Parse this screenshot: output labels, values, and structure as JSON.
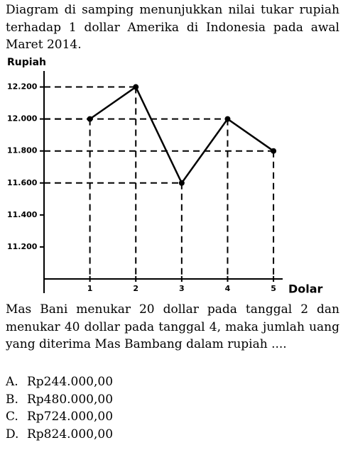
{
  "question": {
    "intro": "Diagram di samping menunjukkan nilai tukar rupiah terhadap 1 dollar Amerika di Indonesia pada awal Maret 2014.",
    "body": "Mas Bani menukar 20 dollar pada tanggal 2 dan menukar 40 dollar pada tanggal 4, maka jumlah uang yang diterima Mas Bambang dalam rupiah ....",
    "options": [
      {
        "letter": "A.",
        "text": "Rp244.000,00"
      },
      {
        "letter": "B.",
        "text": "Rp480.000,00"
      },
      {
        "letter": "C.",
        "text": "Rp724.000,00"
      },
      {
        "letter": "D.",
        "text": "Rp824.000,00"
      }
    ]
  },
  "chart_data": {
    "type": "line",
    "y_label": "Rupiah",
    "x_label": "Dolar",
    "x": [
      1,
      2,
      3,
      4,
      5
    ],
    "values": [
      12000,
      12200,
      11600,
      12000,
      11800
    ],
    "color": "#000000",
    "xlim": [
      0,
      5.2
    ],
    "xticks": [
      1,
      2,
      3,
      4,
      5
    ],
    "ylim": [
      11000,
      12300
    ],
    "yticks": [
      {
        "value": 11200,
        "label": "11.200"
      },
      {
        "value": 11400,
        "label": "11.400"
      },
      {
        "value": 11600,
        "label": "11.600"
      },
      {
        "value": 11800,
        "label": "11.800"
      },
      {
        "value": 12000,
        "label": "12.000"
      },
      {
        "value": 12200,
        "label": "12.200"
      }
    ]
  }
}
